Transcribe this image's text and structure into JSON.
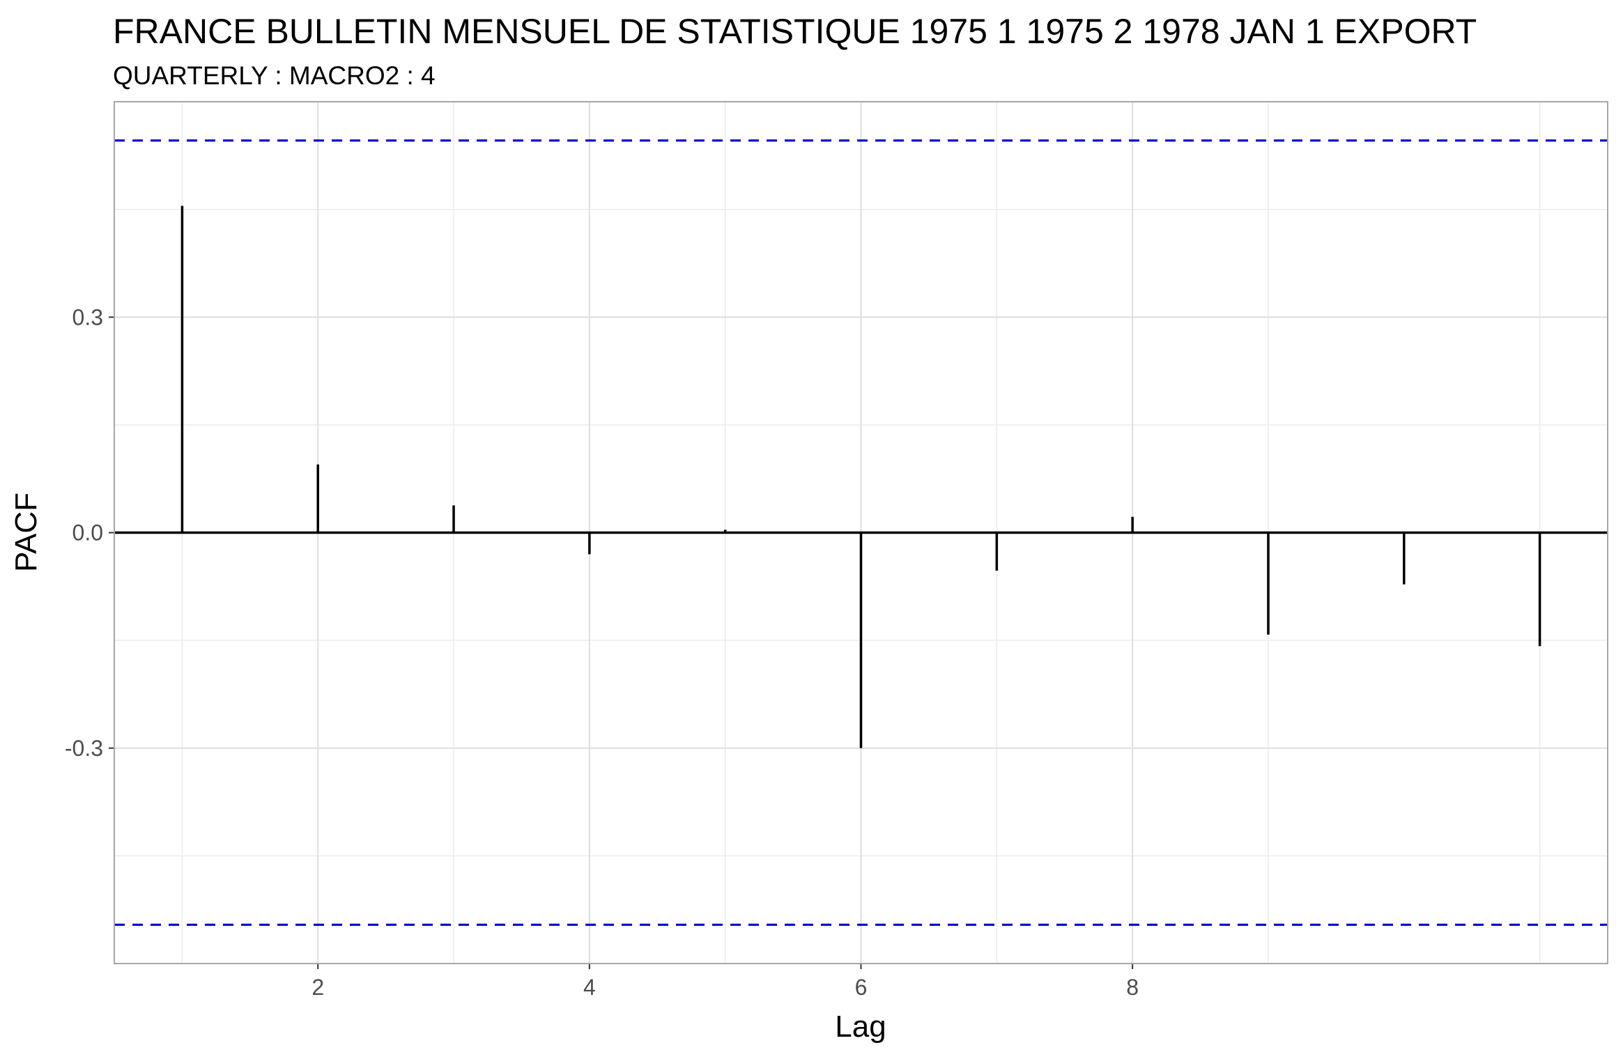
{
  "chart_data": {
    "type": "bar",
    "title": "FRANCE BULLETIN MENSUEL DE STATISTIQUE 1975 1 1975 2 1978 JAN 1 EXPORT",
    "subtitle": "QUARTERLY : MACRO2 : 4",
    "xlabel": "Lag",
    "ylabel": "PACF",
    "x": [
      1,
      2,
      3,
      4,
      5,
      6,
      7,
      8,
      9,
      10,
      11
    ],
    "values": [
      0.455,
      0.095,
      0.038,
      -0.03,
      0.004,
      -0.3,
      -0.053,
      0.022,
      -0.142,
      -0.072,
      -0.158
    ],
    "confidence_bound": 0.546,
    "xlim": [
      0.5,
      11.5
    ],
    "ylim": [
      -0.6,
      0.6
    ],
    "x_ticks": [
      2,
      4,
      6,
      8
    ],
    "x_tick_labels": [
      "2",
      "4",
      "6",
      "8"
    ],
    "y_ticks": [
      -0.3,
      0.0,
      0.3
    ],
    "y_tick_labels": [
      "-0.3",
      "0.0",
      "0.3"
    ],
    "grid": true,
    "colors": {
      "bars": "#000000",
      "confidence_lines": "#0000cc",
      "grid": "#dedede",
      "panel_border": "#a6a6a6"
    }
  }
}
